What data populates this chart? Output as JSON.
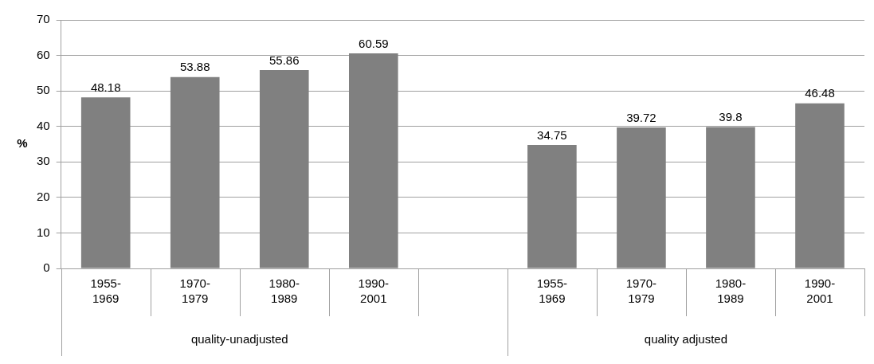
{
  "chart_data": {
    "type": "bar",
    "categories": [
      "1955-1969",
      "1970-1979",
      "1980-1989",
      "1990-2001",
      null,
      "1955-1969",
      "1970-1979",
      "1980-1989",
      "1990-2001"
    ],
    "values": [
      48.18,
      53.88,
      55.86,
      60.59,
      null,
      34.75,
      39.72,
      39.8,
      46.48
    ],
    "color": "#808080",
    "ylabel": "%",
    "ylim": [
      0,
      70
    ],
    "yticks": [
      0,
      10,
      20,
      30,
      40,
      50,
      60,
      70
    ],
    "grid": "y",
    "data_labels": true,
    "legend": false,
    "annotations": [
      "quality-unadjusted",
      "quality adjusted"
    ]
  }
}
